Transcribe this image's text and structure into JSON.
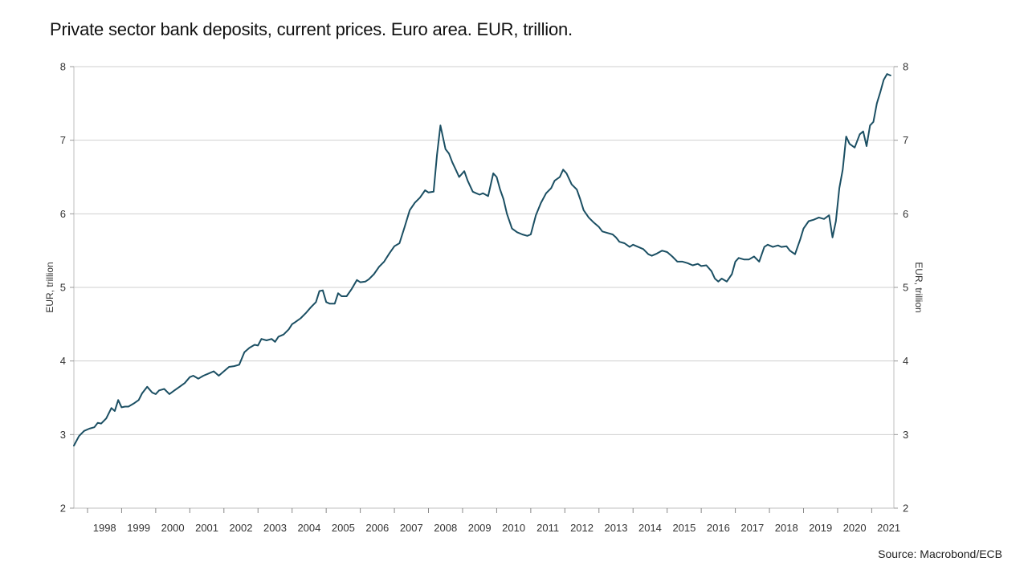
{
  "title": "Private sector bank deposits, current prices. Euro area. EUR, trillion.",
  "source": "Source: Macrobond/ECB",
  "chart_data": {
    "type": "line",
    "ylabel_left": "EUR, trillion",
    "ylabel_right": "EUR, trillion",
    "ylim": [
      2,
      8
    ],
    "yticks": [
      2,
      3,
      4,
      5,
      6,
      7,
      8
    ],
    "xlim": [
      1997.6,
      2021.65
    ],
    "xtick_labels": [
      "1998",
      "1999",
      "2000",
      "2001",
      "2002",
      "2003",
      "2004",
      "2005",
      "2006",
      "2007",
      "2008",
      "2009",
      "2010",
      "2011",
      "2012",
      "2013",
      "2014",
      "2015",
      "2016",
      "2017",
      "2018",
      "2019",
      "2020",
      "2021"
    ],
    "grid": true,
    "line_color": "#1b4f63",
    "series": [
      {
        "x": [
          1997.6,
          1997.75,
          1997.9,
          1998.05,
          1998.2,
          1998.3,
          1998.4,
          1998.55,
          1998.7,
          1998.8,
          1998.9,
          1999.0,
          1999.1,
          1999.2,
          1999.35,
          1999.5,
          1999.6,
          1999.75,
          1999.9,
          2000.0,
          2000.1,
          2000.25,
          2000.4,
          2000.55,
          2000.7,
          2000.85,
          2001.0,
          2001.1,
          2001.25,
          2001.4,
          2001.55,
          2001.7,
          2001.85,
          2002.0,
          2002.15,
          2002.3,
          2002.45,
          2002.6,
          2002.75,
          2002.9,
          2003.0,
          2003.1,
          2003.25,
          2003.4,
          2003.5,
          2003.6,
          2003.75,
          2003.9,
          2004.0,
          2004.1,
          2004.25,
          2004.4,
          2004.55,
          2004.7,
          2004.8,
          2004.9,
          2005.0,
          2005.1,
          2005.25,
          2005.35,
          2005.45,
          2005.6,
          2005.75,
          2005.9,
          2006.0,
          2006.15,
          2006.25,
          2006.4,
          2006.55,
          2006.7,
          2006.85,
          2007.0,
          2007.15,
          2007.3,
          2007.45,
          2007.6,
          2007.75,
          2007.9,
          2008.0,
          2008.15,
          2008.25,
          2008.35,
          2008.5,
          2008.6,
          2008.7,
          2008.8,
          2008.9,
          2009.05,
          2009.15,
          2009.3,
          2009.4,
          2009.5,
          2009.6,
          2009.75,
          2009.9,
          2010.0,
          2010.1,
          2010.2,
          2010.3,
          2010.45,
          2010.6,
          2010.75,
          2010.9,
          2011.0,
          2011.15,
          2011.3,
          2011.45,
          2011.6,
          2011.7,
          2011.85,
          2011.95,
          2012.05,
          2012.2,
          2012.35,
          2012.45,
          2012.55,
          2012.7,
          2012.85,
          2013.0,
          2013.1,
          2013.25,
          2013.4,
          2013.5,
          2013.6,
          2013.75,
          2013.9,
          2014.0,
          2014.15,
          2014.3,
          2014.45,
          2014.55,
          2014.7,
          2014.85,
          2015.0,
          2015.15,
          2015.3,
          2015.45,
          2015.6,
          2015.75,
          2015.9,
          2016.0,
          2016.15,
          2016.3,
          2016.4,
          2016.5,
          2016.6,
          2016.75,
          2016.9,
          2017.0,
          2017.1,
          2017.25,
          2017.4,
          2017.55,
          2017.7,
          2017.85,
          2017.95,
          2018.1,
          2018.25,
          2018.35,
          2018.5,
          2018.6,
          2018.75,
          2018.9,
          2019.0,
          2019.15,
          2019.3,
          2019.45,
          2019.6,
          2019.75,
          2019.85,
          2019.95,
          2020.05,
          2020.15,
          2020.25,
          2020.35,
          2020.5,
          2020.65,
          2020.75,
          2020.85,
          2020.95,
          2021.05,
          2021.15,
          2021.25,
          2021.35,
          2021.45,
          2021.55
        ],
        "y": [
          2.85,
          2.98,
          3.05,
          3.08,
          3.1,
          3.16,
          3.15,
          3.22,
          3.36,
          3.32,
          3.47,
          3.37,
          3.38,
          3.38,
          3.42,
          3.47,
          3.56,
          3.65,
          3.57,
          3.55,
          3.6,
          3.62,
          3.55,
          3.6,
          3.65,
          3.7,
          3.78,
          3.8,
          3.76,
          3.8,
          3.83,
          3.86,
          3.8,
          3.86,
          3.92,
          3.93,
          3.95,
          4.12,
          4.18,
          4.22,
          4.21,
          4.3,
          4.28,
          4.3,
          4.26,
          4.33,
          4.36,
          4.43,
          4.5,
          4.53,
          4.58,
          4.65,
          4.73,
          4.8,
          4.95,
          4.96,
          4.8,
          4.78,
          4.78,
          4.92,
          4.88,
          4.88,
          4.98,
          5.1,
          5.07,
          5.08,
          5.11,
          5.18,
          5.28,
          5.35,
          5.46,
          5.56,
          5.6,
          5.82,
          6.05,
          6.15,
          6.22,
          6.32,
          6.29,
          6.3,
          6.8,
          7.2,
          6.88,
          6.82,
          6.7,
          6.6,
          6.5,
          6.58,
          6.45,
          6.3,
          6.28,
          6.26,
          6.28,
          6.24,
          6.55,
          6.5,
          6.33,
          6.2,
          6.0,
          5.8,
          5.75,
          5.72,
          5.7,
          5.72,
          5.98,
          6.15,
          6.28,
          6.35,
          6.45,
          6.5,
          6.6,
          6.55,
          6.4,
          6.33,
          6.2,
          6.05,
          5.95,
          5.88,
          5.82,
          5.76,
          5.74,
          5.72,
          5.68,
          5.62,
          5.6,
          5.55,
          5.58,
          5.55,
          5.52,
          5.45,
          5.43,
          5.46,
          5.5,
          5.48,
          5.42,
          5.35,
          5.35,
          5.33,
          5.3,
          5.32,
          5.29,
          5.3,
          5.22,
          5.12,
          5.08,
          5.12,
          5.08,
          5.18,
          5.35,
          5.4,
          5.38,
          5.38,
          5.42,
          5.35,
          5.55,
          5.58,
          5.55,
          5.57,
          5.55,
          5.56,
          5.5,
          5.45,
          5.65,
          5.8,
          5.9,
          5.92,
          5.95,
          5.93,
          5.98,
          5.68,
          5.9,
          6.35,
          6.6,
          7.05,
          6.95,
          6.9,
          7.08,
          7.12,
          6.92,
          7.2,
          7.25,
          7.5,
          7.65,
          7.82,
          7.9,
          7.88
        ]
      }
    ]
  }
}
